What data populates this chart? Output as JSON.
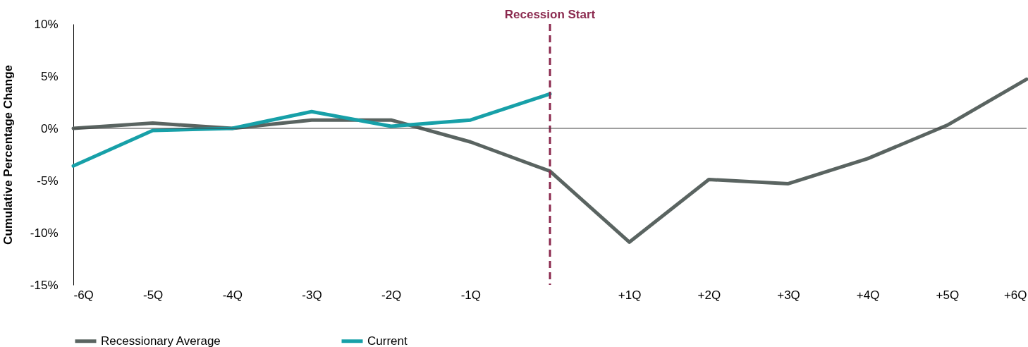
{
  "chart_data": {
    "type": "line",
    "ylabel": "Cumulative Percentage Change",
    "x": [
      -6,
      -5,
      -4,
      -3,
      -2,
      -1,
      0,
      1,
      2,
      3,
      4,
      5,
      6
    ],
    "series": [
      {
        "name": "Recessionary Average",
        "color": "#5a6461",
        "values": [
          0,
          0.5,
          0,
          0.8,
          0.8,
          -1.3,
          -4.1,
          -10.9,
          -4.9,
          -5.3,
          -2.9,
          0.3,
          4.7
        ]
      },
      {
        "name": "Current",
        "color": "#17a0a8",
        "values": [
          -3.6,
          -0.2,
          0,
          1.6,
          0.2,
          0.8,
          3.3,
          null,
          null,
          null,
          null,
          null,
          null
        ]
      }
    ],
    "xlim": [
      -6,
      6
    ],
    "xticks": [
      {
        "value": -6,
        "label": "-6Q"
      },
      {
        "value": -5,
        "label": "-5Q"
      },
      {
        "value": -4,
        "label": "-4Q"
      },
      {
        "value": -3,
        "label": "-3Q"
      },
      {
        "value": -2,
        "label": "-2Q"
      },
      {
        "value": -1,
        "label": "-1Q"
      },
      {
        "value": 1,
        "label": "+1Q"
      },
      {
        "value": 2,
        "label": "+2Q"
      },
      {
        "value": 3,
        "label": "+3Q"
      },
      {
        "value": 4,
        "label": "+4Q"
      },
      {
        "value": 5,
        "label": "+5Q"
      },
      {
        "value": 6,
        "label": "+6Q"
      }
    ],
    "ylim": [
      -15,
      10
    ],
    "yticks": [
      {
        "value": -15,
        "label": "-15%"
      },
      {
        "value": -10,
        "label": "-10%"
      },
      {
        "value": -5,
        "label": "-5%"
      },
      {
        "value": 0,
        "label": "0%"
      },
      {
        "value": 5,
        "label": "5%"
      },
      {
        "value": 10,
        "label": "10%"
      }
    ],
    "ref_lines": [
      {
        "axis": "x",
        "value": 0,
        "label": "Recession Start",
        "color": "#8b2a4f",
        "line_style": "dashed"
      },
      {
        "axis": "y",
        "value": 0,
        "color": "#404040"
      }
    ],
    "grid": false,
    "legend": "bottom"
  }
}
